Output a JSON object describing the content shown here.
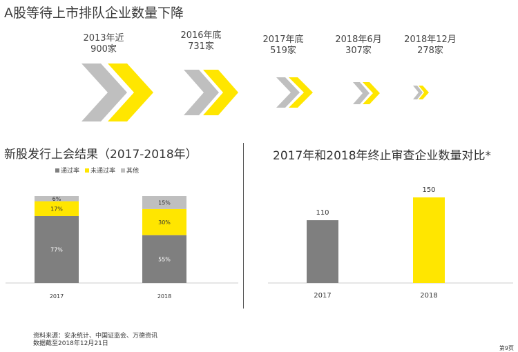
{
  "header": {
    "title": "A股等待上市排队企业数量下降"
  },
  "steps": [
    {
      "label": "2013年近",
      "count": "900家"
    },
    {
      "label": "2016年底",
      "count": "731家"
    },
    {
      "label": "2017年底",
      "count": "519家"
    },
    {
      "label": "2018年6月",
      "count": "307家"
    },
    {
      "label": "2018年12月",
      "count": "278家"
    }
  ],
  "colors": {
    "gray": "#7f7f7f",
    "yellow": "#ffe600",
    "light_gray": "#bfbfbf"
  },
  "chart_data": [
    {
      "type": "bar",
      "stacked": true,
      "title": "新股发行上会结果（2017-2018年）",
      "categories": [
        "2017",
        "2018"
      ],
      "series": [
        {
          "name": "通过率",
          "values": [
            77,
            55
          ],
          "labels": [
            "77%",
            "55%"
          ]
        },
        {
          "name": "未通过率",
          "values": [
            17,
            30
          ],
          "labels": [
            "17%",
            "30%"
          ]
        },
        {
          "name": "其他",
          "values": [
            6,
            15
          ],
          "labels": [
            "6%",
            "15%"
          ]
        }
      ],
      "legend": "top"
    },
    {
      "type": "bar",
      "title": "2017年和2018年终止审查企业数量对比*",
      "categories": [
        "2017",
        "2018"
      ],
      "values": [
        110,
        150
      ],
      "value_labels": [
        "110",
        "150"
      ]
    }
  ],
  "footer": {
    "source_line1": "资料来源：安永统计、中国证监会、万德资讯",
    "source_line2": "数据截至2018年12月21日",
    "page": "第9页"
  }
}
